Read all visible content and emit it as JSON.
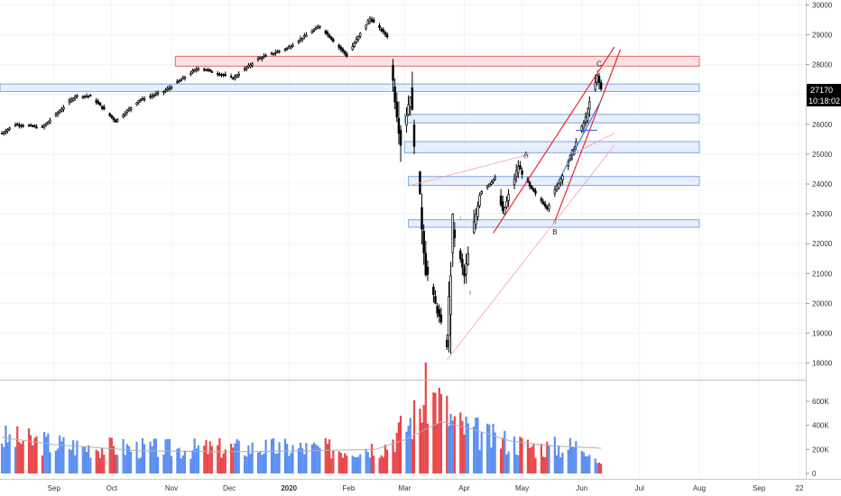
{
  "colors": {
    "candle": "#000000",
    "volume_up": "#5b8ff0",
    "volume_down": "#e8474a",
    "zone_red_fill": "#fbe1e1",
    "zone_red_border": "#e06a6a",
    "zone_blue_fill": "#e7effd",
    "zone_blue_border": "#7fa3e6",
    "channel_red": "#e8191f",
    "trend_light_red": "#f3a4a6",
    "channel_blue": "#3a6fd8",
    "volume_ma": "#b0b0b0",
    "price_tag": "#000000",
    "grid": "#f0f3fa",
    "axis_text": "#333333"
  },
  "price_labels": {
    "last_price": "27170",
    "countdown": "10:18:02"
  },
  "annotations": [
    {
      "text": "A",
      "x": "2020-05-03",
      "y": 24900
    },
    {
      "text": "B",
      "x": "2020-05-18",
      "y": 22300
    },
    {
      "text": "C",
      "x": "2020-06-10",
      "y": 27950
    },
    {
      "text": "iii",
      "x": "2020-05-03",
      "y": 24850
    },
    {
      "text": "iv",
      "x": "2020-05-18",
      "y": 22650
    },
    {
      "text": "v",
      "x": "2020-06-09",
      "y": 27750
    },
    {
      "text": "i",
      "x": "2020-03-30",
      "y": 22800
    },
    {
      "text": "ii",
      "x": "2020-04-04",
      "y": 20300
    }
  ],
  "chart_data": {
    "type": "candlestick",
    "title": "",
    "x_range": [
      "2019-08-04",
      "2020-12-20"
    ],
    "x_ticks": [
      {
        "label": "Sep",
        "date": "2019-09-01"
      },
      {
        "label": "Oct",
        "date": "2019-10-01"
      },
      {
        "label": "Nov",
        "date": "2019-11-01"
      },
      {
        "label": "Dec",
        "date": "2019-12-01"
      },
      {
        "label": "2020",
        "date": "2020-01-01"
      },
      {
        "label": "Feb",
        "date": "2020-02-01"
      },
      {
        "label": "Mar",
        "date": "2020-03-01"
      },
      {
        "label": "Apr",
        "date": "2020-04-01"
      },
      {
        "label": "May",
        "date": "2020-05-01"
      },
      {
        "label": "Jun",
        "date": "2020-06-01"
      },
      {
        "label": "Jul",
        "date": "2020-07-01"
      },
      {
        "label": "Aug",
        "date": "2020-08-01"
      },
      {
        "label": "Sep",
        "date": "2020-09-01"
      },
      {
        "label": "22",
        "date": "2020-09-22"
      }
    ],
    "price_axis": {
      "range": [
        17500,
        30200
      ],
      "ticks": [
        "30000",
        "29000",
        "28000",
        "27000",
        "26000",
        "25000",
        "24000",
        "23000",
        "22000",
        "21000",
        "20000",
        "19000",
        "18000"
      ],
      "tick_values": [
        30000,
        29000,
        28000,
        27000,
        26000,
        25000,
        24000,
        23000,
        22000,
        21000,
        20000,
        19000,
        18000
      ]
    },
    "volume_axis": {
      "range": [
        0,
        730000
      ],
      "ticks": [
        "600K",
        "400K",
        "200K",
        "0"
      ],
      "tick_values": [
        600000,
        400000,
        200000,
        0
      ]
    },
    "key_points": [
      {
        "date": "2019-08-05",
        "close": 25700
      },
      {
        "date": "2019-08-12",
        "close": 26000
      },
      {
        "date": "2019-08-26",
        "close": 25900
      },
      {
        "date": "2019-09-12",
        "close": 26950
      },
      {
        "date": "2019-09-20",
        "close": 26950
      },
      {
        "date": "2019-10-03",
        "close": 26100
      },
      {
        "date": "2019-10-15",
        "close": 26800
      },
      {
        "date": "2019-10-28",
        "close": 27100
      },
      {
        "date": "2019-11-15",
        "close": 27900
      },
      {
        "date": "2019-12-03",
        "close": 27550
      },
      {
        "date": "2019-12-16",
        "close": 28200
      },
      {
        "date": "2019-12-31",
        "close": 28550
      },
      {
        "date": "2020-01-17",
        "close": 29300
      },
      {
        "date": "2020-01-31",
        "close": 28300
      },
      {
        "date": "2020-02-12",
        "close": 29550
      },
      {
        "date": "2020-02-21",
        "close": 28950
      },
      {
        "date": "2020-02-28",
        "close": 25400
      },
      {
        "date": "2020-03-04",
        "close": 27000
      },
      {
        "date": "2020-03-12",
        "close": 21200
      },
      {
        "date": "2020-03-16",
        "close": 20200
      },
      {
        "date": "2020-03-23",
        "close": 18600
      },
      {
        "date": "2020-03-26",
        "close": 22500
      },
      {
        "date": "2020-04-01",
        "close": 20900
      },
      {
        "date": "2020-04-09",
        "close": 23700
      },
      {
        "date": "2020-04-17",
        "close": 24200
      },
      {
        "date": "2020-04-21",
        "close": 23000
      },
      {
        "date": "2020-04-29",
        "close": 24600
      },
      {
        "date": "2020-05-05",
        "close": 23900
      },
      {
        "date": "2020-05-14",
        "close": 23200
      },
      {
        "date": "2020-05-26",
        "close": 24900
      },
      {
        "date": "2020-06-03",
        "close": 26200
      },
      {
        "date": "2020-06-09",
        "close": 27600
      },
      {
        "date": "2020-06-11",
        "close": 27170
      }
    ],
    "volume": {
      "ma_points": [
        {
          "date": "2019-08-05",
          "value": 300000
        },
        {
          "date": "2019-09-01",
          "value": 240000
        },
        {
          "date": "2019-10-15",
          "value": 190000
        },
        {
          "date": "2019-12-01",
          "value": 180000
        },
        {
          "date": "2020-01-15",
          "value": 190000
        },
        {
          "date": "2020-02-15",
          "value": 200000
        },
        {
          "date": "2020-03-01",
          "value": 280000
        },
        {
          "date": "2020-03-20",
          "value": 430000
        },
        {
          "date": "2020-04-05",
          "value": 370000
        },
        {
          "date": "2020-04-25",
          "value": 270000
        },
        {
          "date": "2020-05-15",
          "value": 230000
        },
        {
          "date": "2020-06-11",
          "value": 210000
        }
      ],
      "level_points": [
        {
          "date": "2019-08-05",
          "value": 300000
        },
        {
          "date": "2019-09-15",
          "value": 230000
        },
        {
          "date": "2019-11-01",
          "value": 210000
        },
        {
          "date": "2019-12-15",
          "value": 220000
        },
        {
          "date": "2020-02-01",
          "value": 210000
        },
        {
          "date": "2020-02-20",
          "value": 240000
        },
        {
          "date": "2020-03-06",
          "value": 480000
        },
        {
          "date": "2020-03-13",
          "value": 690000
        },
        {
          "date": "2020-03-20",
          "value": 600000
        },
        {
          "date": "2020-03-27",
          "value": 420000
        },
        {
          "date": "2020-04-15",
          "value": 300000
        },
        {
          "date": "2020-05-10",
          "value": 220000
        },
        {
          "date": "2020-06-05",
          "value": 240000
        },
        {
          "date": "2020-06-11",
          "value": 60000
        }
      ]
    },
    "zones": [
      {
        "color": "red",
        "low": 27950,
        "high": 28280,
        "x_start": "2019-11-03",
        "x_end": "2020-08-01"
      },
      {
        "color": "blue",
        "low": 27100,
        "high": 27350,
        "x_start": "2019-08-04",
        "x_end": "2020-08-01"
      },
      {
        "color": "blue",
        "low": 26050,
        "high": 26330,
        "x_start": "2020-03-01",
        "x_end": "2020-08-01"
      },
      {
        "color": "blue",
        "low": 25050,
        "high": 25420,
        "x_start": "2020-03-01",
        "x_end": "2020-08-01"
      },
      {
        "color": "blue",
        "low": 23950,
        "high": 24250,
        "x_start": "2020-03-03",
        "x_end": "2020-08-01"
      },
      {
        "color": "blue",
        "low": 22550,
        "high": 22800,
        "x_start": "2020-03-03",
        "x_end": "2020-08-01"
      }
    ],
    "trendlines": [
      {
        "style": "channel_red",
        "from": {
          "date": "2020-04-16",
          "price": 22350
        },
        "to": {
          "date": "2020-06-18",
          "price": 28600
        }
      },
      {
        "style": "channel_red",
        "from": {
          "date": "2020-05-18",
          "price": 22750
        },
        "to": {
          "date": "2020-06-21",
          "price": 28500
        }
      },
      {
        "style": "trend_light_red",
        "from": {
          "date": "2020-03-23",
          "price": 18100
        },
        "to": {
          "date": "2020-06-18",
          "price": 25300
        }
      },
      {
        "style": "trend_light_red",
        "from": {
          "date": "2020-03-04",
          "price": 23950
        },
        "to": {
          "date": "2020-05-05",
          "price": 25000
        }
      },
      {
        "style": "trend_light_red",
        "from": {
          "date": "2020-05-27",
          "price": 25000
        },
        "to": {
          "date": "2020-06-18",
          "price": 25700
        }
      },
      {
        "style": "channel_blue",
        "from": {
          "date": "2020-05-19",
          "price": 24000
        },
        "to": {
          "date": "2020-06-11",
          "price": 26800
        }
      },
      {
        "style": "channel_blue",
        "from": {
          "date": "2020-05-29",
          "price": 25800
        },
        "to": {
          "date": "2020-06-09",
          "price": 25800
        }
      }
    ]
  }
}
